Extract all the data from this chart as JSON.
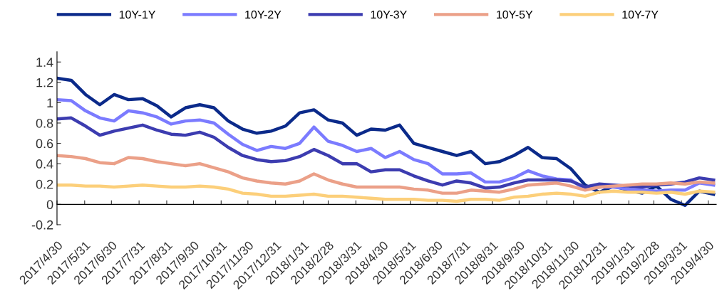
{
  "chart_data": {
    "type": "line",
    "legend": "top",
    "marker": "none",
    "line_style": "solid",
    "x": [
      "2017-04-30",
      "2017-05-16",
      "2017-06-01",
      "2017-06-17",
      "2017-07-03",
      "2017-07-19",
      "2017-08-04",
      "2017-08-20",
      "2017-09-05",
      "2017-09-21",
      "2017-10-07",
      "2017-10-23",
      "2017-11-08",
      "2017-11-24",
      "2017-12-10",
      "2017-12-26",
      "2018-01-11",
      "2018-01-27",
      "2018-02-12",
      "2018-02-28",
      "2018-03-16",
      "2018-04-01",
      "2018-04-17",
      "2018-05-03",
      "2018-05-19",
      "2018-06-04",
      "2018-06-20",
      "2018-07-06",
      "2018-07-22",
      "2018-08-07",
      "2018-08-23",
      "2018-09-08",
      "2018-09-24",
      "2018-10-10",
      "2018-10-26",
      "2018-11-11",
      "2018-11-27",
      "2018-12-13",
      "2018-12-29",
      "2019-01-14",
      "2019-01-30",
      "2019-02-15",
      "2019-03-03",
      "2019-03-19",
      "2019-04-04",
      "2019-04-20",
      "2019-05-06"
    ],
    "series": [
      {
        "name": "10Y-1Y",
        "color": "#0b2a8a",
        "values": [
          1.24,
          1.22,
          1.08,
          0.98,
          1.08,
          1.03,
          1.04,
          0.97,
          0.86,
          0.95,
          0.98,
          0.95,
          0.82,
          0.74,
          0.7,
          0.72,
          0.77,
          0.9,
          0.93,
          0.83,
          0.8,
          0.68,
          0.74,
          0.73,
          0.78,
          0.6,
          0.56,
          0.52,
          0.48,
          0.52,
          0.4,
          0.42,
          0.48,
          0.56,
          0.46,
          0.45,
          0.35,
          0.19,
          0.12,
          0.18,
          0.14,
          0.11,
          0.18,
          0.05,
          -0.01,
          0.13,
          0.1
        ]
      },
      {
        "name": "10Y-2Y",
        "color": "#7b7bff",
        "values": [
          1.03,
          1.02,
          0.92,
          0.85,
          0.82,
          0.92,
          0.9,
          0.86,
          0.79,
          0.82,
          0.83,
          0.8,
          0.69,
          0.59,
          0.53,
          0.57,
          0.55,
          0.6,
          0.76,
          0.62,
          0.58,
          0.52,
          0.55,
          0.46,
          0.52,
          0.44,
          0.4,
          0.3,
          0.3,
          0.31,
          0.22,
          0.22,
          0.26,
          0.33,
          0.28,
          0.25,
          0.24,
          0.15,
          0.17,
          0.17,
          0.15,
          0.14,
          0.13,
          0.14,
          0.14,
          0.21,
          0.19
        ]
      },
      {
        "name": "10Y-3Y",
        "color": "#3c3cb0",
        "values": [
          0.84,
          0.85,
          0.77,
          0.68,
          0.72,
          0.75,
          0.78,
          0.73,
          0.69,
          0.68,
          0.71,
          0.66,
          0.56,
          0.48,
          0.44,
          0.42,
          0.43,
          0.47,
          0.54,
          0.48,
          0.4,
          0.4,
          0.32,
          0.34,
          0.34,
          0.28,
          0.23,
          0.19,
          0.23,
          0.21,
          0.16,
          0.17,
          0.21,
          0.24,
          0.24,
          0.24,
          0.23,
          0.17,
          0.2,
          0.19,
          0.18,
          0.17,
          0.19,
          0.2,
          0.22,
          0.26,
          0.24
        ]
      },
      {
        "name": "10Y-5Y",
        "color": "#eba088",
        "values": [
          0.48,
          0.47,
          0.45,
          0.41,
          0.4,
          0.46,
          0.45,
          0.42,
          0.4,
          0.38,
          0.4,
          0.36,
          0.32,
          0.26,
          0.23,
          0.21,
          0.2,
          0.23,
          0.3,
          0.24,
          0.2,
          0.17,
          0.17,
          0.17,
          0.17,
          0.15,
          0.14,
          0.11,
          0.11,
          0.14,
          0.13,
          0.12,
          0.15,
          0.19,
          0.2,
          0.21,
          0.18,
          0.14,
          0.17,
          0.18,
          0.19,
          0.2,
          0.2,
          0.21,
          0.2,
          0.22,
          0.21
        ]
      },
      {
        "name": "10Y-7Y",
        "color": "#fccf7a",
        "values": [
          0.19,
          0.19,
          0.18,
          0.18,
          0.17,
          0.18,
          0.19,
          0.18,
          0.17,
          0.17,
          0.18,
          0.17,
          0.15,
          0.11,
          0.1,
          0.08,
          0.08,
          0.09,
          0.1,
          0.08,
          0.08,
          0.07,
          0.06,
          0.05,
          0.05,
          0.05,
          0.04,
          0.04,
          0.03,
          0.05,
          0.05,
          0.04,
          0.07,
          0.08,
          0.1,
          0.11,
          0.1,
          0.08,
          0.12,
          0.13,
          0.12,
          0.12,
          0.11,
          0.12,
          0.1,
          0.13,
          0.12
        ]
      }
    ],
    "xlim": [
      "2017-04-30",
      "2019-05-09"
    ],
    "xticks": [
      {
        "value": "2017-04-30",
        "label": "2017/4/30"
      },
      {
        "value": "2017-05-31",
        "label": "2017/5/31"
      },
      {
        "value": "2017-06-30",
        "label": "2017/6/30"
      },
      {
        "value": "2017-07-31",
        "label": "2017/7/31"
      },
      {
        "value": "2017-08-31",
        "label": "2017/8/31"
      },
      {
        "value": "2017-09-30",
        "label": "2017/9/30"
      },
      {
        "value": "2017-10-31",
        "label": "2017/10/31"
      },
      {
        "value": "2017-11-30",
        "label": "2017/11/30"
      },
      {
        "value": "2017-12-31",
        "label": "2017/12/31"
      },
      {
        "value": "2018-01-31",
        "label": "2018/1/31"
      },
      {
        "value": "2018-02-28",
        "label": "2018/2/28"
      },
      {
        "value": "2018-03-31",
        "label": "2018/3/31"
      },
      {
        "value": "2018-04-30",
        "label": "2018/4/30"
      },
      {
        "value": "2018-05-31",
        "label": "2018/5/31"
      },
      {
        "value": "2018-06-30",
        "label": "2018/6/30"
      },
      {
        "value": "2018-07-31",
        "label": "2018/7/31"
      },
      {
        "value": "2018-08-31",
        "label": "2018/8/31"
      },
      {
        "value": "2018-09-30",
        "label": "2018/9/30"
      },
      {
        "value": "2018-10-31",
        "label": "2018/10/31"
      },
      {
        "value": "2018-11-30",
        "label": "2018/11/30"
      },
      {
        "value": "2018-12-31",
        "label": "2018/12/31"
      },
      {
        "value": "2019-01-31",
        "label": "2019/1/31"
      },
      {
        "value": "2019-02-28",
        "label": "2019/2/28"
      },
      {
        "value": "2019-03-31",
        "label": "2019/3/31"
      },
      {
        "value": "2019-04-30",
        "label": "2019/4/30"
      }
    ],
    "ylim": [
      -0.2,
      1.5
    ],
    "yticks": [
      {
        "value": -0.2,
        "label": "-0.2"
      },
      {
        "value": 0,
        "label": "0"
      },
      {
        "value": 0.2,
        "label": "0.2"
      },
      {
        "value": 0.4,
        "label": "0.4"
      },
      {
        "value": 0.6,
        "label": "0.6"
      },
      {
        "value": 0.8,
        "label": "0.8"
      },
      {
        "value": 1,
        "label": "1"
      },
      {
        "value": 1.2,
        "label": "1.2"
      },
      {
        "value": 1.4,
        "label": "1.4"
      }
    ]
  }
}
